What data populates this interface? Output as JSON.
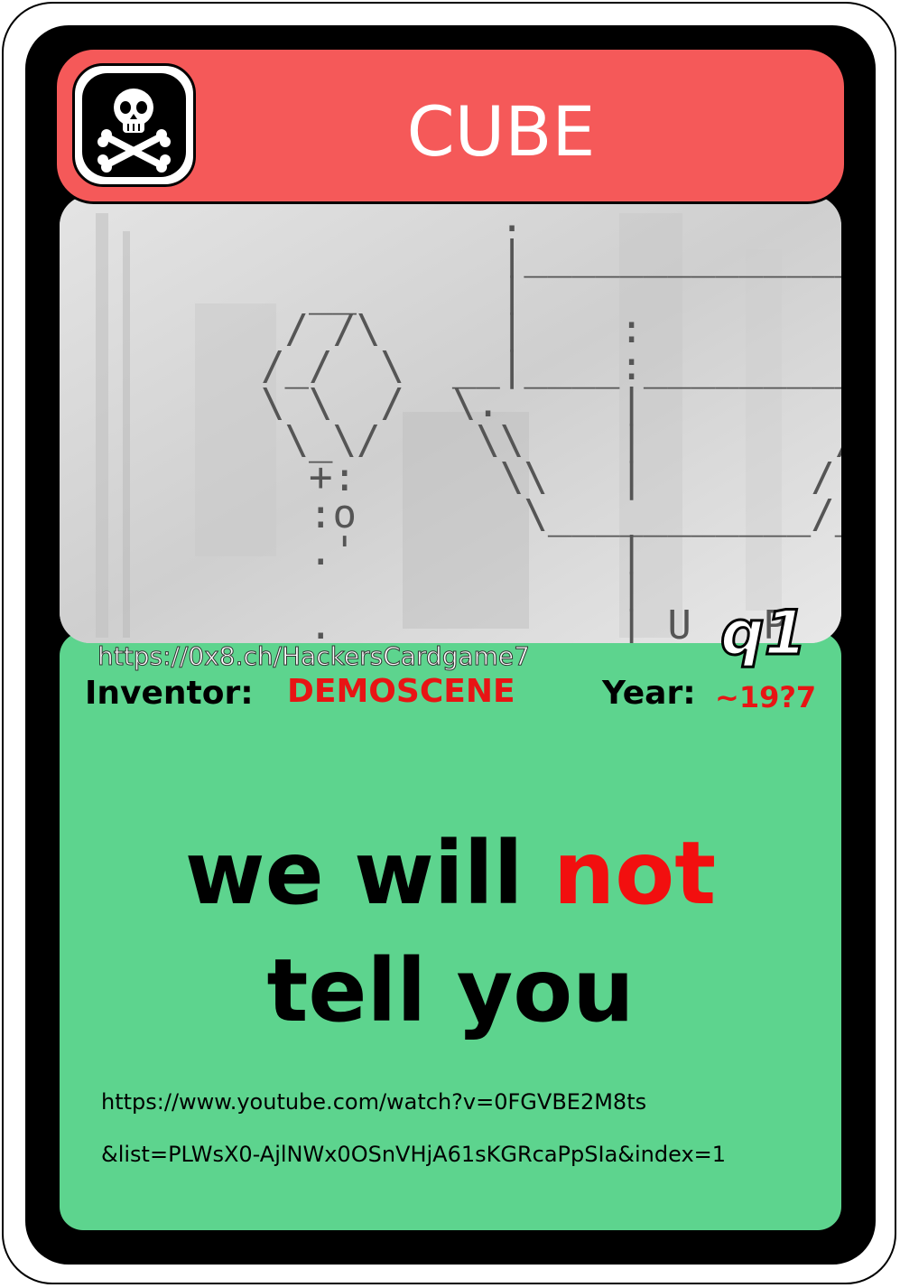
{
  "card": {
    "title": "CUBE",
    "badge": "q1",
    "url": "https://0x8.ch/HackersCardgame7",
    "icon": "skull-crossbones-icon",
    "header_color": "#f55959",
    "panel_color": "#5dd48e"
  },
  "info": {
    "inventor_label": "Inventor:",
    "inventor_value": "DEMOSCENE",
    "year_label": "Year:",
    "year_value": "~19?7"
  },
  "body": {
    "line1_part1": "we will ",
    "line1_part2": "not",
    "line2": "tell you"
  },
  "links": {
    "line1": "https://www.youtube.com/watch?v=0FGVBE2M8ts",
    "line2": "&list=PLWsX0-AjlNWx0OSnVHjA61sKGRcaPpSIa&index=1"
  },
  "image": {
    "ascii_lines": [
      "            .",
      "            |___________________",
      "    __      |",
      "   / /\\     |    :",
      "  /_/  \\  __|____:__________  ____",
      "  \\ \\  /  \\.     |         /_\\___",
      "   \\_\\/    \\\\    |        /",
      "    +:      \\\\   |       /",
      "    :o       \\___________/_______",
      "    .'           |",
      "                 |",
      "    .            | U   P   K"
    ]
  }
}
